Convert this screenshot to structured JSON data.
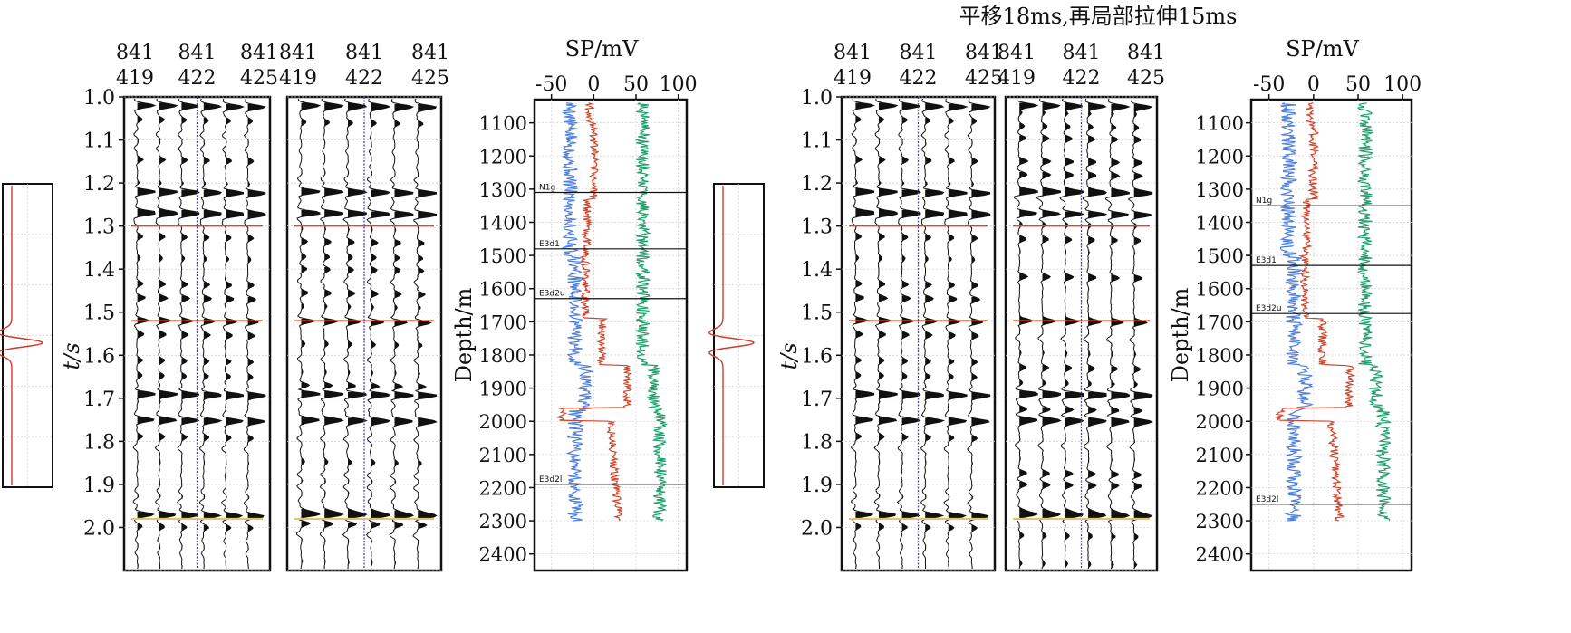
{
  "title": "平移18ms,再局部拉伸15ms",
  "colors": {
    "seismic": "#111111",
    "horizon_red": "#d9482b",
    "horizon_yellow": "#e5c56a",
    "well_trace": "#4a3bd1",
    "log_blue": "#4f7fdc",
    "log_red": "#d0452a",
    "log_green": "#1f9f6a",
    "wavelet": "#cf3b2a"
  },
  "chart_data": [
    {
      "type": "seismic-section",
      "panel": "left-1",
      "trace_labels": [
        [
          "841",
          "419"
        ],
        [
          "841",
          "422"
        ],
        [
          "841",
          "425"
        ]
      ],
      "ylabel": "t/s",
      "yticks": [
        "1.0",
        "1.1",
        "1.2",
        "1.3",
        "1.4",
        "1.5",
        "1.6",
        "1.7",
        "1.8",
        "1.9",
        "2.0"
      ],
      "ylim": [
        1.0,
        2.1
      ],
      "horizons": [
        1.3,
        1.52,
        1.98
      ]
    },
    {
      "type": "seismic-section",
      "panel": "left-2",
      "trace_labels": [
        [
          "841",
          "419"
        ],
        [
          "841",
          "422"
        ],
        [
          "841",
          "425"
        ]
      ],
      "ylim": [
        1.0,
        2.1
      ],
      "horizons": [
        1.3,
        1.52,
        1.98
      ]
    },
    {
      "type": "well-log",
      "panel": "left-log",
      "xlabel": "SP/mV",
      "xticks": [
        "-50",
        "0",
        "50",
        "100"
      ],
      "xlim": [
        -70,
        110
      ],
      "ylabel": "Depth/m",
      "yticks": [
        "1100",
        "1200",
        "1300",
        "1400",
        "1500",
        "1600",
        "1700",
        "1800",
        "1900",
        "2000",
        "2100",
        "2200",
        "2300",
        "2400"
      ],
      "ylim": [
        1030,
        2450
      ],
      "tops": [
        {
          "name": "N1g",
          "depth": 1310
        },
        {
          "name": "E3d1",
          "depth": 1480
        },
        {
          "name": "E3d2u",
          "depth": 1630
        },
        {
          "name": "E3d2l",
          "depth": 2190
        }
      ]
    },
    {
      "type": "wavelet",
      "panel": "left-wavelet"
    },
    {
      "type": "wavelet",
      "panel": "right-wavelet"
    },
    {
      "type": "seismic-section",
      "panel": "right-1",
      "trace_labels": [
        [
          "841",
          "419"
        ],
        [
          "841",
          "422"
        ],
        [
          "841",
          "425"
        ]
      ],
      "ylabel": "t/s",
      "yticks": [
        "1.0",
        "1.1",
        "1.2",
        "1.3",
        "1.4",
        "1.5",
        "1.6",
        "1.7",
        "1.8",
        "1.9",
        "2.0"
      ],
      "ylim": [
        1.0,
        2.1
      ],
      "horizons": [
        1.3,
        1.52,
        1.98
      ]
    },
    {
      "type": "seismic-section",
      "panel": "right-2",
      "trace_labels": [
        [
          "841",
          "419"
        ],
        [
          "841",
          "422"
        ],
        [
          "841",
          "425"
        ]
      ],
      "ylim": [
        1.0,
        2.1
      ],
      "horizons": [
        1.3,
        1.52,
        1.98
      ]
    },
    {
      "type": "well-log",
      "panel": "right-log",
      "xlabel": "SP/mV",
      "xticks": [
        "-50",
        "0",
        "50",
        "100"
      ],
      "xlim": [
        -70,
        110
      ],
      "ylabel": "Depth/m",
      "yticks": [
        "1100",
        "1200",
        "1300",
        "1400",
        "1500",
        "1600",
        "1700",
        "1800",
        "1900",
        "2000",
        "2100",
        "2200",
        "2300",
        "2400"
      ],
      "ylim": [
        1030,
        2450
      ],
      "tops": [
        {
          "name": "N1g",
          "depth": 1350
        },
        {
          "name": "E3d1",
          "depth": 1530
        },
        {
          "name": "E3d2u",
          "depth": 1675
        },
        {
          "name": "E3d2l",
          "depth": 2250
        }
      ]
    }
  ]
}
